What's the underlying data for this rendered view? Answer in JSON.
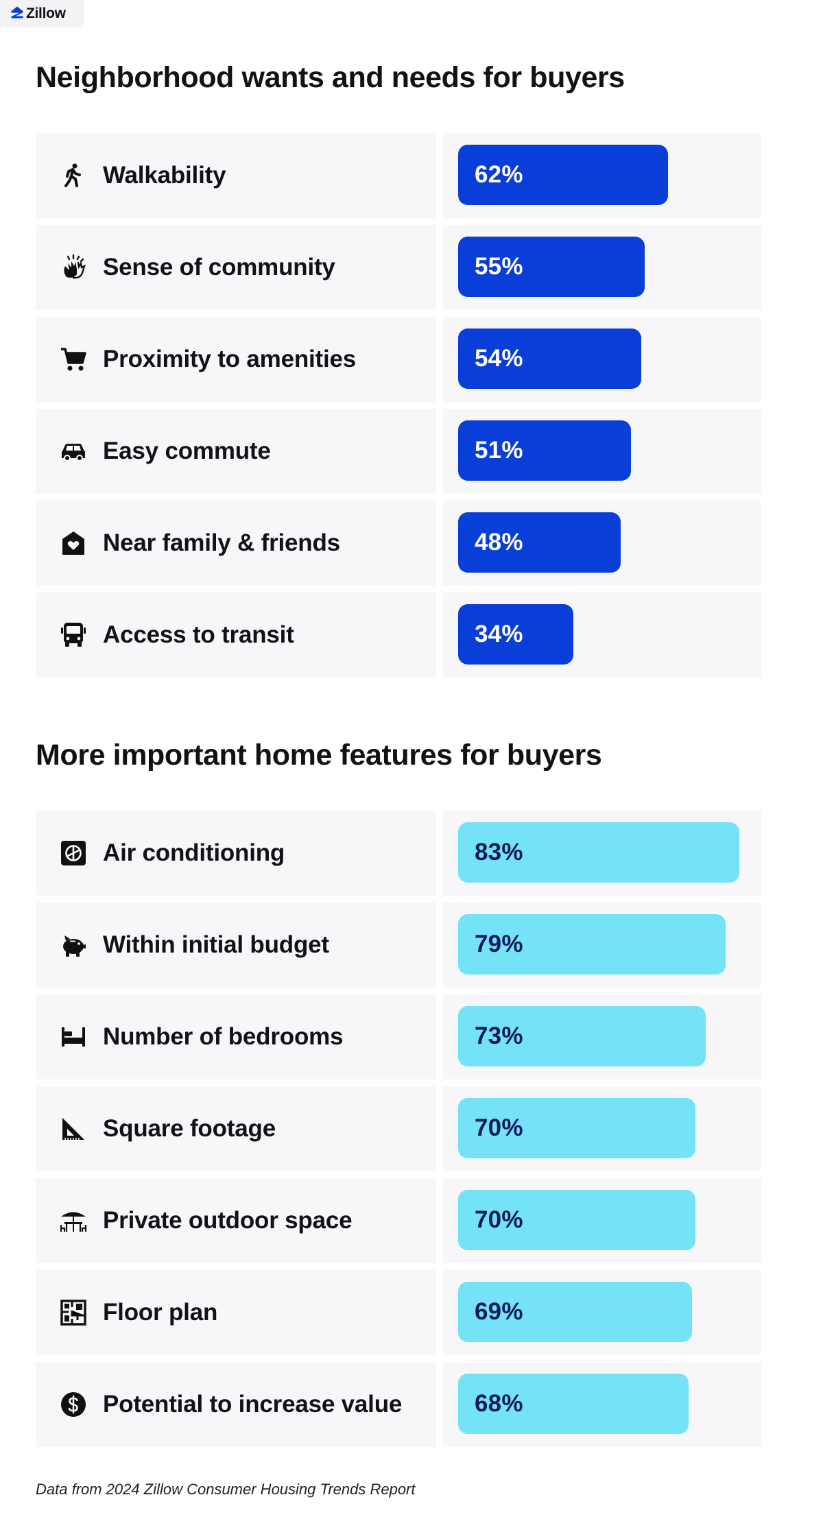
{
  "brand": {
    "name": "Zillow",
    "icon": "zillow-logo-icon"
  },
  "colors": {
    "bar_primary": "#0a3ed8",
    "bar_secondary": "#74e2f7",
    "panel": "#f7f7f9"
  },
  "chart_data": [
    {
      "type": "bar",
      "orientation": "horizontal",
      "title": "Neighborhood wants and needs for buyers",
      "categories": [
        "Walkability",
        "Sense of community",
        "Proximity to amenities",
        "Easy commute",
        "Near family & friends",
        "Access to transit"
      ],
      "values": [
        62,
        55,
        54,
        51,
        48,
        34
      ],
      "value_labels": [
        "62%",
        "55%",
        "54%",
        "51%",
        "48%",
        "34%"
      ],
      "icons": [
        "walking-person-icon",
        "clapping-hands-icon",
        "shopping-cart-icon",
        "car-icon",
        "house-heart-icon",
        "bus-icon"
      ],
      "unit": "%",
      "xlim": [
        0,
        100
      ],
      "color": "#0a3ed8"
    },
    {
      "type": "bar",
      "orientation": "horizontal",
      "title": "More important home features for buyers",
      "categories": [
        "Air conditioning",
        "Within initial budget",
        "Number of bedrooms",
        "Square footage",
        "Private outdoor space",
        "Floor plan",
        "Potential to increase value"
      ],
      "values": [
        83,
        79,
        73,
        70,
        70,
        69,
        68
      ],
      "value_labels": [
        "83%",
        "79%",
        "73%",
        "70%",
        "70%",
        "69%",
        "68%"
      ],
      "icons": [
        "air-conditioner-icon",
        "piggy-bank-icon",
        "bed-icon",
        "set-square-ruler-icon",
        "patio-umbrella-table-icon",
        "floor-plan-icon",
        "dollar-coin-icon"
      ],
      "unit": "%",
      "xlim": [
        0,
        100
      ],
      "color": "#74e2f7"
    }
  ],
  "footnote": "Data from 2024 Zillow Consumer Housing Trends Report"
}
